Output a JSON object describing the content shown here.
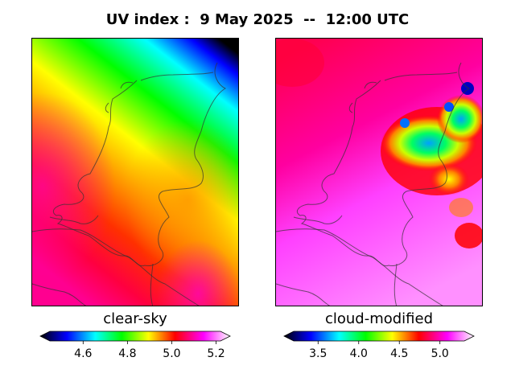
{
  "title": "UV index :  9 May 2025  --  12:00 UTC",
  "panels": [
    {
      "label": "clear-sky",
      "colorbar": {
        "min": 4.45,
        "max": 5.22,
        "ticks": [
          "4.6",
          "4.8",
          "5.0",
          "5.2"
        ],
        "tick_values": [
          4.6,
          4.8,
          5.0,
          5.2
        ],
        "extend": "both"
      }
    },
    {
      "label": "cloud-modified",
      "colorbar": {
        "min": 3.2,
        "max": 5.3,
        "ticks": [
          "3.5",
          "4.0",
          "4.5",
          "5.0"
        ],
        "tick_values": [
          3.5,
          4.0,
          4.5,
          5.0
        ],
        "extend": "both"
      }
    }
  ],
  "colormap": [
    "#000000",
    "#0000ff",
    "#00ffff",
    "#00ff00",
    "#ffff00",
    "#ff0000",
    "#ff00ff",
    "#ffffff"
  ]
}
